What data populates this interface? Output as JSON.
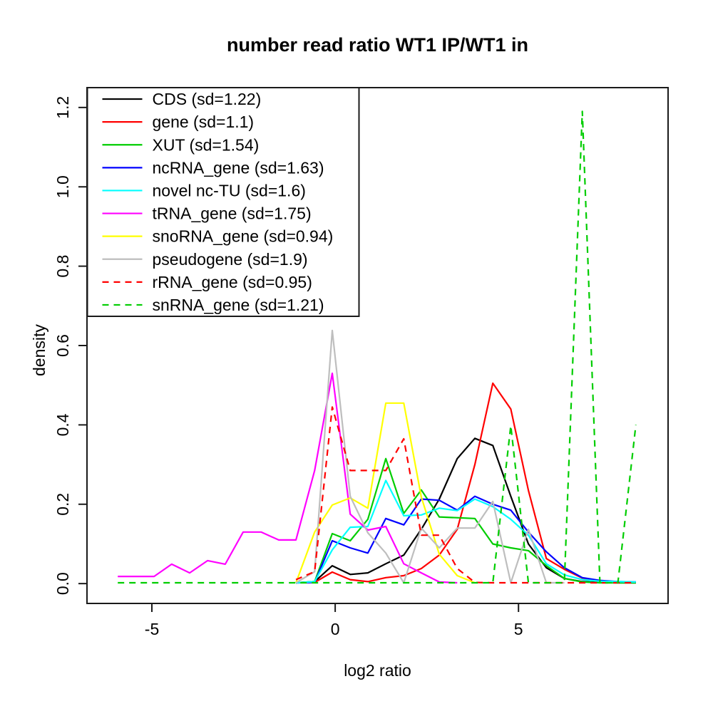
{
  "figure": {
    "background": "#ffffff",
    "axis_color": "#1a1a1a"
  },
  "chart_data": {
    "type": "line",
    "title": "number read ratio WT1 IP/WT1 in",
    "xlabel": "log2 ratio",
    "ylabel": "density",
    "xlim": [
      -6.77,
      9.08
    ],
    "ylim": [
      -0.05,
      1.25
    ],
    "grid": false,
    "legend_position": "top-left",
    "xticks": [
      {
        "value": -5,
        "label": "-5"
      },
      {
        "value": 0,
        "label": "0"
      },
      {
        "value": 5,
        "label": "5"
      }
    ],
    "yticks": [
      {
        "value": 0.0,
        "label": "0.0"
      },
      {
        "value": 0.2,
        "label": "0.2"
      },
      {
        "value": 0.4,
        "label": "0.4"
      },
      {
        "value": 0.6,
        "label": "0.6"
      },
      {
        "value": 0.8,
        "label": "0.8"
      },
      {
        "value": 1.0,
        "label": "1.0"
      },
      {
        "value": 1.2,
        "label": "1.2"
      }
    ],
    "series": [
      {
        "name": "CDS",
        "label": "CDS (sd=1.22)",
        "sd": 1.22,
        "color": "#000000",
        "dashed": false,
        "points": [
          [
            -1.07,
            0.002
          ],
          [
            -0.56,
            0.005
          ],
          [
            -0.08,
            0.045
          ],
          [
            0.41,
            0.023
          ],
          [
            0.89,
            0.027
          ],
          [
            1.38,
            0.05
          ],
          [
            1.87,
            0.072
          ],
          [
            2.35,
            0.137
          ],
          [
            2.84,
            0.213
          ],
          [
            3.33,
            0.315
          ],
          [
            3.81,
            0.366
          ],
          [
            4.3,
            0.348
          ],
          [
            4.79,
            0.22
          ],
          [
            5.27,
            0.1
          ],
          [
            5.76,
            0.04
          ],
          [
            6.25,
            0.013
          ],
          [
            6.74,
            0.005
          ],
          [
            7.22,
            0.003
          ],
          [
            7.71,
            0.002
          ],
          [
            8.2,
            0.002
          ]
        ]
      },
      {
        "name": "gene",
        "label": "gene (sd=1.1)",
        "sd": 1.1,
        "color": "#FF0000",
        "dashed": false,
        "points": [
          [
            -1.07,
            0.002
          ],
          [
            -0.56,
            0.003
          ],
          [
            -0.08,
            0.029
          ],
          [
            0.41,
            0.01
          ],
          [
            0.89,
            0.005
          ],
          [
            1.38,
            0.015
          ],
          [
            1.87,
            0.02
          ],
          [
            2.35,
            0.038
          ],
          [
            2.84,
            0.072
          ],
          [
            3.33,
            0.137
          ],
          [
            3.81,
            0.3
          ],
          [
            4.3,
            0.505
          ],
          [
            4.79,
            0.44
          ],
          [
            5.27,
            0.235
          ],
          [
            5.76,
            0.063
          ],
          [
            6.25,
            0.036
          ],
          [
            6.74,
            0.014
          ],
          [
            7.22,
            0.005
          ],
          [
            7.71,
            0.003
          ],
          [
            8.2,
            0.002
          ]
        ]
      },
      {
        "name": "XUT",
        "label": "XUT (sd=1.54)",
        "sd": 1.54,
        "color": "#00CD00",
        "dashed": false,
        "points": [
          [
            -1.07,
            0.002
          ],
          [
            -0.56,
            0.005
          ],
          [
            -0.08,
            0.126
          ],
          [
            0.41,
            0.108
          ],
          [
            0.89,
            0.162
          ],
          [
            1.38,
            0.315
          ],
          [
            1.87,
            0.177
          ],
          [
            2.35,
            0.236
          ],
          [
            2.84,
            0.168
          ],
          [
            3.33,
            0.166
          ],
          [
            3.81,
            0.164
          ],
          [
            4.3,
            0.1
          ],
          [
            4.79,
            0.09
          ],
          [
            5.27,
            0.083
          ],
          [
            5.76,
            0.045
          ],
          [
            6.25,
            0.013
          ],
          [
            6.74,
            0.004
          ],
          [
            7.22,
            0.002
          ],
          [
            7.71,
            0.002
          ],
          [
            8.2,
            0.002
          ]
        ]
      },
      {
        "name": "ncRNA_gene",
        "label": "ncRNA_gene (sd=1.63)",
        "sd": 1.63,
        "color": "#0000FF",
        "dashed": false,
        "points": [
          [
            -1.07,
            0.002
          ],
          [
            -0.56,
            0.003
          ],
          [
            -0.08,
            0.108
          ],
          [
            0.41,
            0.09
          ],
          [
            0.89,
            0.077
          ],
          [
            1.38,
            0.164
          ],
          [
            1.87,
            0.148
          ],
          [
            2.35,
            0.213
          ],
          [
            2.84,
            0.21
          ],
          [
            3.33,
            0.185
          ],
          [
            3.81,
            0.22
          ],
          [
            4.3,
            0.2
          ],
          [
            4.79,
            0.185
          ],
          [
            5.27,
            0.13
          ],
          [
            5.76,
            0.08
          ],
          [
            6.25,
            0.04
          ],
          [
            6.74,
            0.015
          ],
          [
            7.22,
            0.008
          ],
          [
            7.71,
            0.005
          ],
          [
            8.2,
            0.004
          ]
        ]
      },
      {
        "name": "novel nc-TU",
        "label": "novel nc-TU (sd=1.6)",
        "sd": 1.6,
        "color": "#00FFFF",
        "dashed": false,
        "points": [
          [
            -1.07,
            0.002
          ],
          [
            -0.56,
            0.005
          ],
          [
            -0.08,
            0.085
          ],
          [
            0.41,
            0.142
          ],
          [
            0.89,
            0.144
          ],
          [
            1.38,
            0.26
          ],
          [
            1.87,
            0.171
          ],
          [
            2.35,
            0.173
          ],
          [
            2.84,
            0.19
          ],
          [
            3.33,
            0.184
          ],
          [
            3.81,
            0.213
          ],
          [
            4.3,
            0.194
          ],
          [
            4.79,
            0.162
          ],
          [
            5.27,
            0.122
          ],
          [
            5.76,
            0.05
          ],
          [
            6.25,
            0.022
          ],
          [
            6.74,
            0.01
          ],
          [
            7.22,
            0.006
          ],
          [
            7.71,
            0.005
          ],
          [
            8.2,
            0.004
          ]
        ]
      },
      {
        "name": "tRNA_gene",
        "label": "tRNA_gene (sd=1.75)",
        "sd": 1.75,
        "color": "#FF00FF",
        "dashed": false,
        "points": [
          [
            -5.93,
            0.018
          ],
          [
            -5.45,
            0.018
          ],
          [
            -4.94,
            0.018
          ],
          [
            -4.46,
            0.049
          ],
          [
            -3.97,
            0.027
          ],
          [
            -3.48,
            0.058
          ],
          [
            -3.0,
            0.049
          ],
          [
            -2.51,
            0.13
          ],
          [
            -2.02,
            0.13
          ],
          [
            -1.54,
            0.11
          ],
          [
            -1.07,
            0.11
          ],
          [
            -0.56,
            0.285
          ],
          [
            -0.08,
            0.53
          ],
          [
            0.41,
            0.175
          ],
          [
            0.89,
            0.135
          ],
          [
            1.38,
            0.144
          ],
          [
            1.87,
            0.05
          ],
          [
            2.35,
            0.027
          ],
          [
            2.84,
            0.004
          ],
          [
            3.33,
            0.002
          ]
        ]
      },
      {
        "name": "snoRNA_gene",
        "label": "snoRNA_gene (sd=0.94)",
        "sd": 0.94,
        "color": "#FFFF00",
        "dashed": false,
        "points": [
          [
            -1.07,
            0.002
          ],
          [
            -0.56,
            0.13
          ],
          [
            -0.08,
            0.198
          ],
          [
            0.41,
            0.216
          ],
          [
            0.89,
            0.19
          ],
          [
            1.38,
            0.455
          ],
          [
            1.87,
            0.455
          ],
          [
            2.35,
            0.218
          ],
          [
            2.84,
            0.074
          ],
          [
            3.33,
            0.02
          ],
          [
            3.81,
            0.002
          ]
        ]
      },
      {
        "name": "pseudogene",
        "label": "pseudogene (sd=1.9)",
        "sd": 1.9,
        "color": "#BEBEBE",
        "dashed": false,
        "points": [
          [
            -1.07,
            0.002
          ],
          [
            -0.56,
            0.03
          ],
          [
            -0.08,
            0.638
          ],
          [
            0.41,
            0.22
          ],
          [
            0.89,
            0.128
          ],
          [
            1.38,
            0.077
          ],
          [
            1.87,
            0.002
          ],
          [
            2.35,
            0.14
          ],
          [
            2.84,
            0.09
          ],
          [
            3.33,
            0.14
          ],
          [
            3.81,
            0.14
          ],
          [
            4.3,
            0.207
          ],
          [
            4.79,
            0.002
          ],
          [
            5.27,
            0.137
          ],
          [
            5.76,
            0.002
          ],
          [
            6.25,
            0.002
          ]
        ]
      },
      {
        "name": "rRNA_gene",
        "label": "rRNA_gene (sd=0.95)",
        "sd": 0.95,
        "color": "#FF0000",
        "dashed": true,
        "points": [
          [
            -1.07,
            0.01
          ],
          [
            -0.56,
            0.03
          ],
          [
            -0.08,
            0.445
          ],
          [
            0.41,
            0.285
          ],
          [
            0.89,
            0.285
          ],
          [
            1.38,
            0.285
          ],
          [
            1.87,
            0.365
          ],
          [
            2.35,
            0.122
          ],
          [
            2.84,
            0.122
          ],
          [
            3.33,
            0.038
          ],
          [
            3.81,
            0.003
          ],
          [
            4.3,
            0.002
          ],
          [
            4.79,
            0.002
          ],
          [
            5.27,
            0.002
          ],
          [
            5.76,
            0.002
          ],
          [
            6.25,
            0.002
          ],
          [
            6.74,
            0.002
          ],
          [
            7.22,
            0.002
          ],
          [
            7.71,
            0.002
          ],
          [
            8.2,
            0.002
          ]
        ]
      },
      {
        "name": "snRNA_gene",
        "label": "snRNA_gene (sd=1.21)",
        "sd": 1.21,
        "color": "#00CD00",
        "dashed": true,
        "points": [
          [
            -5.93,
            0.002
          ],
          [
            -5.45,
            0.002
          ],
          [
            -4.94,
            0.002
          ],
          [
            -4.46,
            0.002
          ],
          [
            -3.97,
            0.002
          ],
          [
            -3.48,
            0.002
          ],
          [
            -3.0,
            0.002
          ],
          [
            -2.51,
            0.002
          ],
          [
            -2.02,
            0.002
          ],
          [
            -1.54,
            0.002
          ],
          [
            -1.07,
            0.002
          ],
          [
            -0.56,
            0.002
          ],
          [
            -0.08,
            0.002
          ],
          [
            0.41,
            0.002
          ],
          [
            0.89,
            0.002
          ],
          [
            1.38,
            0.002
          ],
          [
            1.87,
            0.002
          ],
          [
            2.35,
            0.002
          ],
          [
            2.84,
            0.002
          ],
          [
            3.33,
            0.002
          ],
          [
            3.81,
            0.002
          ],
          [
            4.3,
            0.002
          ],
          [
            4.79,
            0.398
          ],
          [
            5.27,
            0.002
          ],
          [
            5.76,
            0.002
          ],
          [
            6.25,
            0.002
          ],
          [
            6.74,
            1.19
          ],
          [
            7.22,
            0.002
          ],
          [
            7.71,
            0.002
          ],
          [
            8.2,
            0.4
          ]
        ]
      }
    ]
  }
}
